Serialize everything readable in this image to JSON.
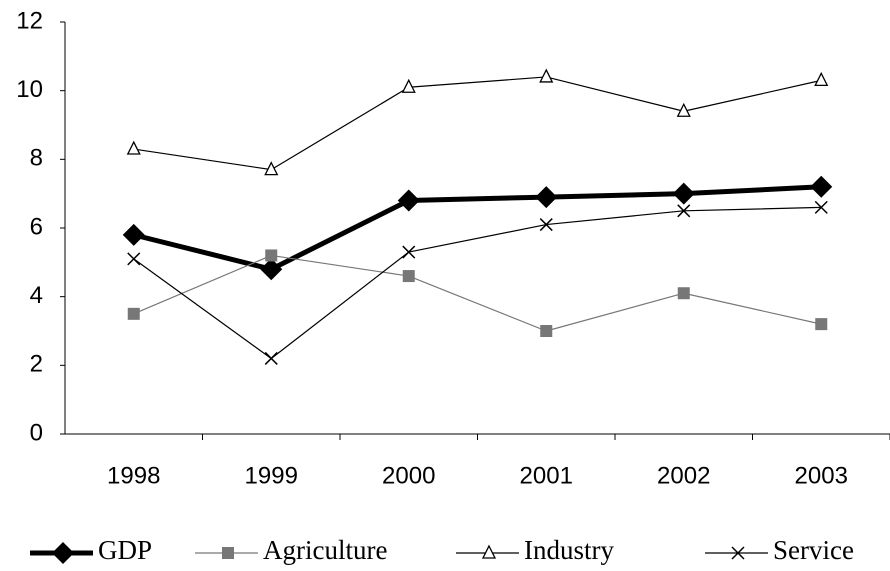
{
  "chart_data": {
    "type": "line",
    "categories": [
      "1998",
      "1999",
      "2000",
      "2001",
      "2002",
      "2003"
    ],
    "series": [
      {
        "name": "GDP",
        "color": "#000000",
        "marker": "diamond",
        "width": 5,
        "values": [
          5.8,
          4.8,
          6.8,
          6.9,
          7.0,
          7.2
        ]
      },
      {
        "name": "Agriculture",
        "color": "#777777",
        "marker": "square",
        "width": 1.2,
        "values": [
          3.5,
          5.2,
          4.6,
          3.0,
          4.1,
          3.2
        ]
      },
      {
        "name": "Industry",
        "color": "#000000",
        "marker": "triangle",
        "width": 1.2,
        "values": [
          8.3,
          7.7,
          10.1,
          10.4,
          9.4,
          10.3
        ]
      },
      {
        "name": "Service",
        "color": "#000000",
        "marker": "x",
        "width": 1.2,
        "values": [
          5.1,
          2.2,
          5.3,
          6.1,
          6.5,
          6.6
        ]
      }
    ],
    "ylim": [
      0,
      12
    ],
    "yticks": [
      0,
      2,
      4,
      6,
      8,
      10,
      12
    ],
    "legend": "bottom"
  }
}
